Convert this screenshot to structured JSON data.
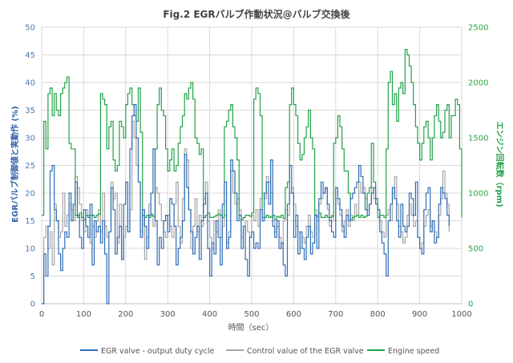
{
  "chart_data": {
    "type": "line",
    "title": "Fig.2 EGRバルブ作動状況@バルブ交換後",
    "xlabel": "時間（sec）",
    "ylabel_left": "EGRバルブ制御値と実動作 (%)",
    "ylabel_right": "エンジン回転数（rpm)",
    "xlim": [
      0,
      1000
    ],
    "ylim_left": [
      0,
      50
    ],
    "ylim_right": [
      0,
      2500
    ],
    "x_ticks": [
      "0",
      "100",
      "200",
      "300",
      "400",
      "500",
      "600",
      "700",
      "800",
      "900",
      "1000"
    ],
    "y_left_ticks": [
      "0",
      "5",
      "10",
      "15",
      "20",
      "25",
      "30",
      "35",
      "40",
      "45",
      "50"
    ],
    "y_right_ticks": [
      "0",
      "500",
      "1000",
      "1500",
      "2000",
      "2500"
    ],
    "x_step": 5,
    "colors": {
      "egr_output": "#2f6db5",
      "egr_control": "#a6a6a6",
      "engine_speed": "#22a24a",
      "grid": "#d9d9d9"
    },
    "series": [
      {
        "name": "EGR valve - output duty cycle",
        "axis": "left",
        "values": [
          0,
          9,
          5,
          14,
          24,
          25,
          17,
          15,
          9,
          6,
          10,
          13,
          12,
          20,
          15,
          18,
          22,
          16,
          12,
          10,
          17,
          14,
          12,
          18,
          7,
          15,
          13,
          14,
          11,
          15,
          9,
          0,
          13,
          21,
          17,
          9,
          12,
          14,
          8,
          18,
          22,
          13,
          28,
          34,
          36,
          30,
          22,
          12,
          17,
          14,
          10,
          16,
          20,
          28,
          15,
          7,
          12,
          10,
          15,
          16,
          13,
          19,
          18,
          14,
          7,
          10,
          12,
          15,
          27,
          21,
          17,
          13,
          9,
          12,
          14,
          8,
          15,
          18,
          20,
          10,
          5,
          11,
          9,
          15,
          12,
          7,
          18,
          22,
          10,
          12,
          26,
          24,
          20,
          15,
          16,
          10,
          14,
          8,
          5,
          12,
          13,
          10,
          11,
          10,
          17,
          15,
          20,
          22,
          18,
          26,
          14,
          12,
          15,
          10,
          11,
          7,
          5,
          18,
          25,
          20,
          12,
          16,
          9,
          13,
          10,
          8,
          12,
          14,
          9,
          11,
          16,
          10,
          19,
          22,
          20,
          21,
          18,
          15,
          13,
          12,
          21,
          19,
          17,
          14,
          12,
          16,
          15,
          19,
          20,
          21,
          22,
          25,
          23,
          20,
          17,
          16,
          18,
          20,
          21,
          19,
          17,
          13,
          11,
          9,
          5,
          15,
          18,
          21,
          19,
          15,
          12,
          18,
          14,
          13,
          14,
          20,
          19,
          16,
          22,
          12,
          10,
          9,
          17,
          20,
          21,
          13,
          15,
          11,
          12,
          18,
          21,
          20,
          19,
          16,
          14
        ]
      },
      {
        "name": "Control value of the EGR valve",
        "axis": "left",
        "values": [
          0,
          12,
          14,
          10,
          13,
          7,
          18,
          15,
          12,
          13,
          20,
          14,
          16,
          18,
          17,
          15,
          23,
          21,
          18,
          15,
          13,
          17,
          16,
          11,
          14,
          12,
          15,
          17,
          13,
          20,
          14,
          12,
          13,
          22,
          19,
          20,
          11,
          18,
          8,
          12,
          14,
          13,
          17,
          33,
          30,
          25,
          22,
          13,
          16,
          8,
          12,
          18,
          16,
          14,
          21,
          20,
          18,
          15,
          13,
          12,
          16,
          14,
          12,
          18,
          22,
          14,
          11,
          19,
          28,
          26,
          17,
          10,
          14,
          19,
          13,
          16,
          14,
          19,
          22,
          15,
          12,
          10,
          15,
          13,
          17,
          12,
          14,
          16,
          11,
          13,
          24,
          20,
          18,
          19,
          17,
          12,
          14,
          15,
          13,
          12,
          16,
          15,
          17,
          14,
          19,
          20,
          19,
          23,
          22,
          20,
          15,
          13,
          14,
          12,
          10,
          15,
          17,
          16,
          20,
          21,
          18,
          14,
          13,
          10,
          12,
          11,
          14,
          16,
          13,
          12,
          17,
          15,
          18,
          19,
          20,
          21,
          17,
          14,
          16,
          15,
          19,
          18,
          16,
          13,
          15,
          17,
          14,
          16,
          15,
          18,
          16,
          22,
          20,
          21,
          19,
          17,
          18,
          21,
          19,
          18,
          17,
          15,
          13,
          12,
          16,
          17,
          15,
          20,
          23,
          18,
          14,
          13,
          11,
          12,
          16,
          18,
          16,
          14,
          15,
          12,
          10,
          11,
          14,
          16,
          17,
          14,
          15,
          13,
          12,
          16,
          19,
          24,
          20,
          18,
          13
        ]
      },
      {
        "name": "Engine speed",
        "axis": "right",
        "values": [
          800,
          1650,
          1400,
          1900,
          1950,
          1700,
          1900,
          1750,
          1700,
          1900,
          1950,
          2000,
          2050,
          1450,
          1400,
          1400,
          800,
          780,
          820,
          780,
          760,
          800,
          780,
          800,
          800,
          780,
          800,
          810,
          1900,
          1850,
          1800,
          1400,
          1600,
          1650,
          1300,
          1200,
          1250,
          1650,
          1600,
          1500,
          1800,
          1900,
          1950,
          1800,
          1700,
          1650,
          1950,
          1550,
          800,
          780,
          800,
          780,
          810,
          790,
          1400,
          1800,
          1950,
          1750,
          1700,
          1400,
          1200,
          1300,
          1400,
          1200,
          1250,
          1450,
          1600,
          1700,
          1900,
          1850,
          1950,
          2000,
          1850,
          1500,
          1450,
          1350,
          1400,
          780,
          800,
          820,
          780,
          780,
          790,
          800,
          810,
          800,
          780,
          1600,
          1650,
          1750,
          1800,
          1600,
          1500,
          1300,
          800,
          760,
          780,
          800,
          800,
          790,
          820,
          1850,
          1950,
          1900,
          1700,
          780,
          780,
          800,
          780,
          790,
          800,
          760,
          790,
          780,
          800,
          770,
          1050,
          1100,
          1800,
          1950,
          1800,
          1700,
          1450,
          1300,
          1350,
          1500,
          1600,
          1750,
          1500,
          1400,
          800,
          790,
          820,
          780,
          780,
          800,
          780,
          780,
          790,
          1450,
          1500,
          1700,
          1600,
          1400,
          1200,
          1200,
          1000,
          760,
          780,
          790,
          800,
          780,
          800,
          780,
          790,
          1000,
          1050,
          1450,
          1100,
          900,
          780,
          800,
          800,
          780,
          1400,
          2000,
          2100,
          1800,
          1900,
          1650,
          1950,
          2000,
          1900,
          2300,
          2250,
          2150,
          2000,
          1800,
          1600,
          1450,
          1300,
          1450,
          1600,
          1650,
          1500,
          1300,
          1500,
          1700,
          1800,
          1650,
          1500,
          1550,
          1750,
          1800,
          1500,
          1700,
          1700,
          1850,
          1800,
          1400,
          1250,
          800,
          780,
          790
        ]
      }
    ]
  }
}
